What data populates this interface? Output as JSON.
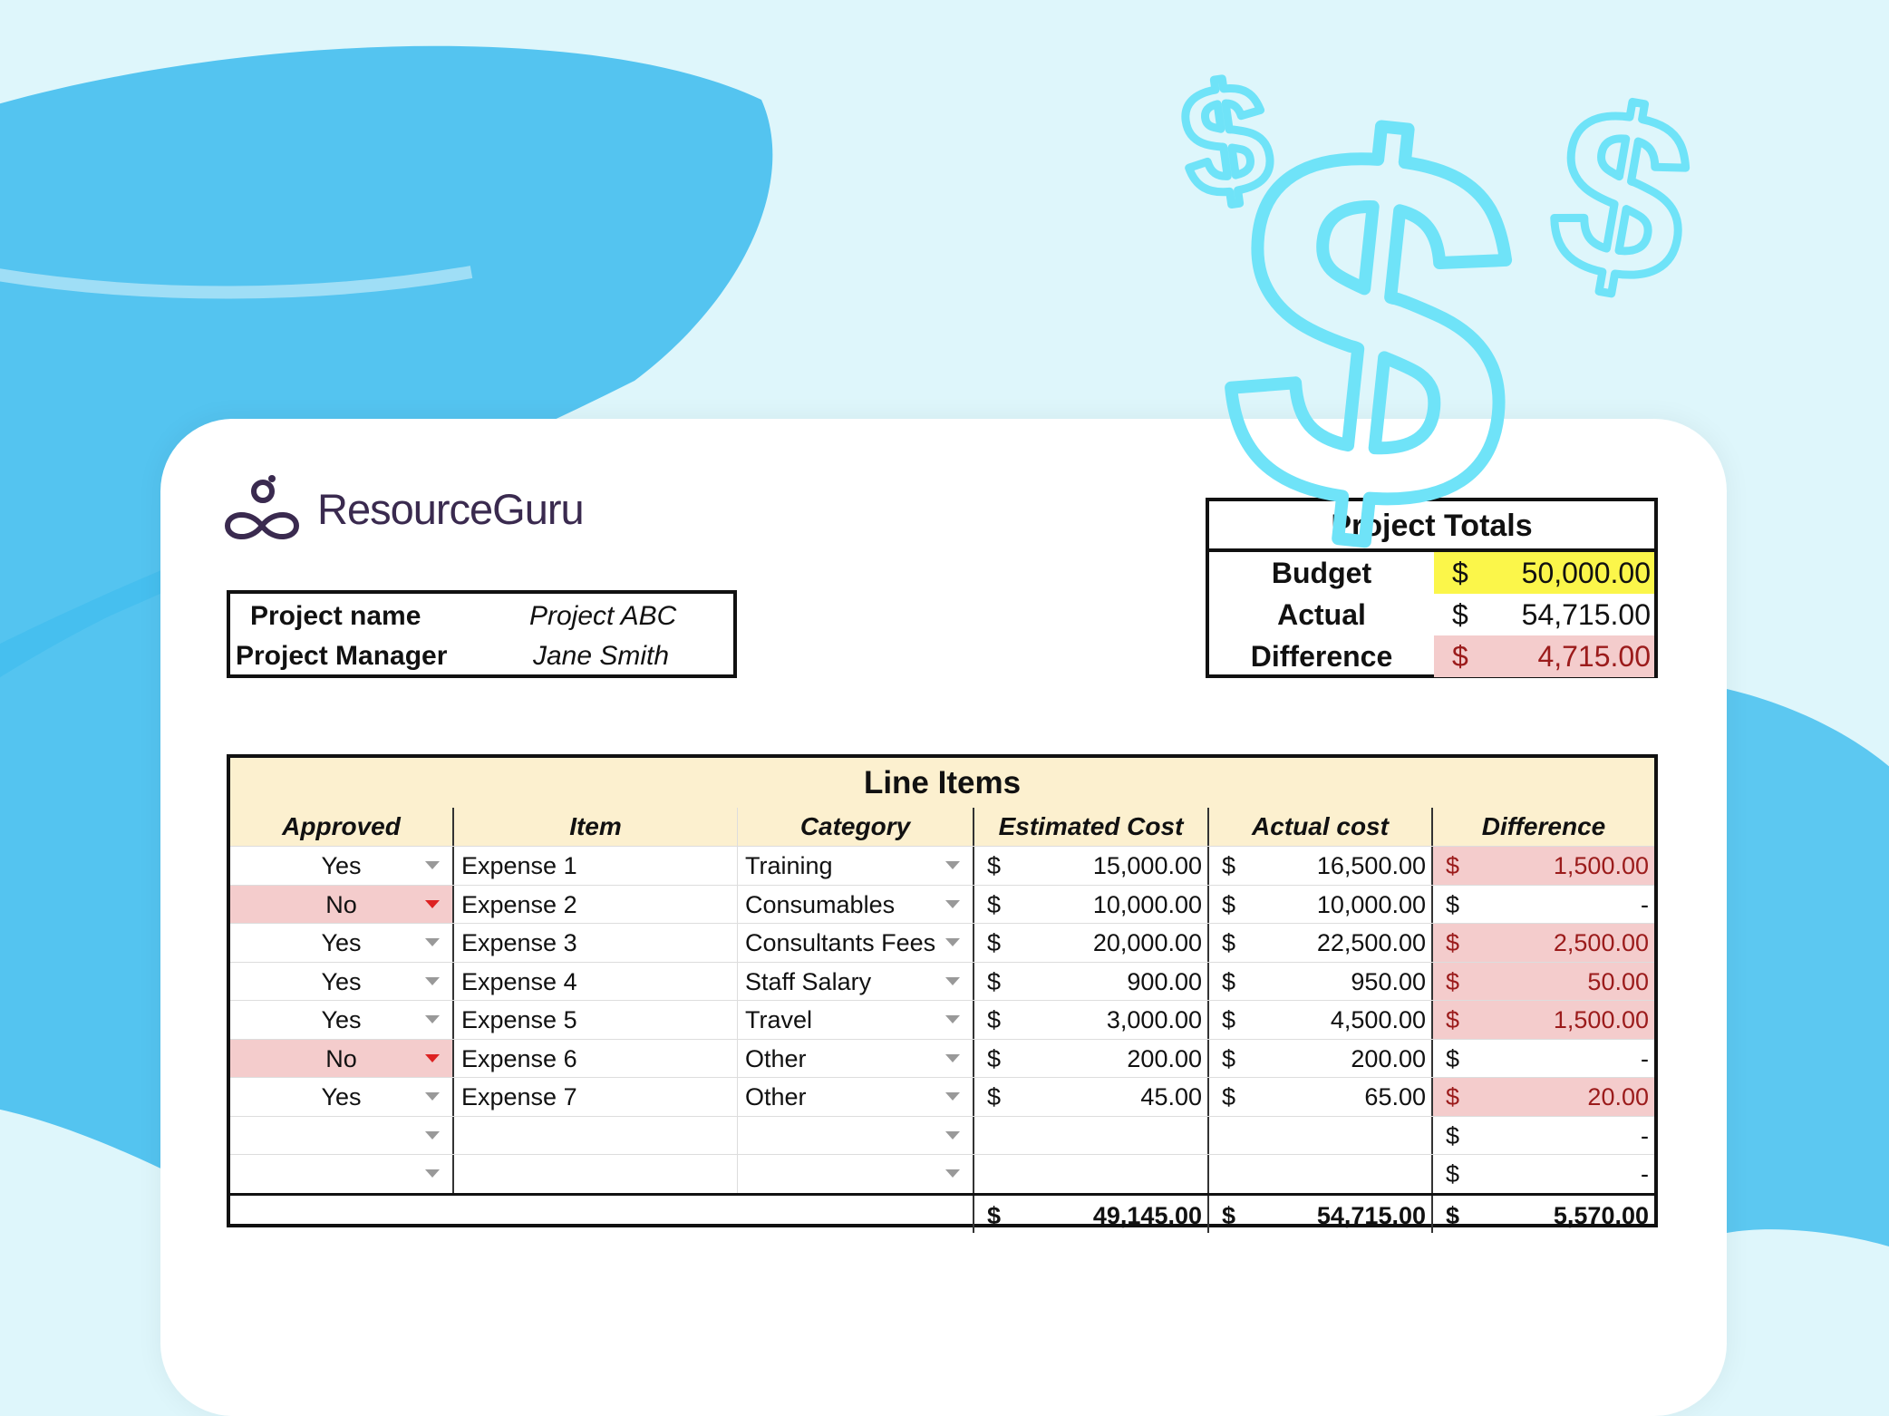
{
  "brand": {
    "name": "ResourceGuru"
  },
  "project": {
    "name_label": "Project name",
    "name_value": "Project ABC",
    "manager_label": "Project Manager",
    "manager_value": "Jane Smith"
  },
  "totals": {
    "title": "Project Totals",
    "currency": "$",
    "budget_label": "Budget",
    "budget": "50,000.00",
    "actual_label": "Actual",
    "actual": "54,715.00",
    "difference_label": "Difference",
    "difference": "4,715.00"
  },
  "line_items": {
    "title": "Line Items",
    "columns": [
      "Approved",
      "Item",
      "Category",
      "Estimated Cost",
      "Actual cost",
      "Difference"
    ],
    "rows": [
      {
        "approved": "Yes",
        "item": "Expense 1",
        "category": "Training",
        "estimated": "15,000.00",
        "actual": "16,500.00",
        "difference": "1,500.00",
        "over": true
      },
      {
        "approved": "No",
        "item": "Expense 2",
        "category": "Consumables",
        "estimated": "10,000.00",
        "actual": "10,000.00",
        "difference": "-",
        "over": false
      },
      {
        "approved": "Yes",
        "item": "Expense 3",
        "category": "Consultants Fees",
        "estimated": "20,000.00",
        "actual": "22,500.00",
        "difference": "2,500.00",
        "over": true
      },
      {
        "approved": "Yes",
        "item": "Expense 4",
        "category": "Staff Salary",
        "estimated": "900.00",
        "actual": "950.00",
        "difference": "50.00",
        "over": true
      },
      {
        "approved": "Yes",
        "item": "Expense 5",
        "category": "Travel",
        "estimated": "3,000.00",
        "actual": "4,500.00",
        "difference": "1,500.00",
        "over": true
      },
      {
        "approved": "No",
        "item": "Expense 6",
        "category": "Other",
        "estimated": "200.00",
        "actual": "200.00",
        "difference": "-",
        "over": false
      },
      {
        "approved": "Yes",
        "item": "Expense 7",
        "category": "Other",
        "estimated": "45.00",
        "actual": "65.00",
        "difference": "20.00",
        "over": true
      },
      {
        "approved": "",
        "item": "",
        "category": "",
        "estimated": "",
        "actual": "",
        "difference": "-",
        "over": false
      },
      {
        "approved": "",
        "item": "",
        "category": "",
        "estimated": "",
        "actual": "",
        "difference": "-",
        "over": false
      }
    ],
    "totals": {
      "estimated": "49,145.00",
      "actual": "54,715.00",
      "difference": "5,570.00"
    }
  },
  "colors": {
    "background": "#def6fb",
    "brush": "#45bfee",
    "dollar_sketch": "#6fe3f8",
    "header_fill": "#fcf0cf",
    "budget_fill": "#fbf64a",
    "over_fill": "#f4cccc",
    "over_text": "#9b1b1b"
  }
}
